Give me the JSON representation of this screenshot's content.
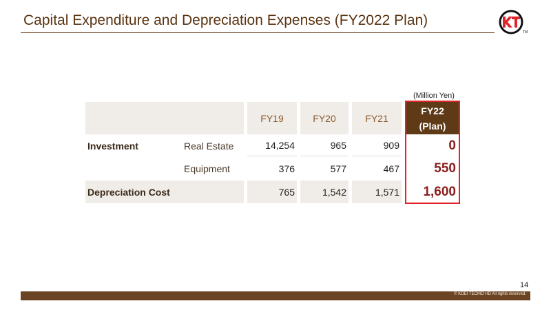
{
  "header": {
    "title": "Capital Expenditure and Depreciation Expenses (FY2022 Plan)",
    "logo_text": "KT",
    "logo_tm": "TM"
  },
  "table": {
    "unit": "(Million Yen)",
    "columns": [
      "FY19",
      "FY20",
      "FY21"
    ],
    "plan_column": {
      "line1": "FY22",
      "line2": "(Plan)"
    },
    "rows": [
      {
        "label": "Investment",
        "sublabel": "Real Estate",
        "values": [
          "14,254",
          "965",
          "909"
        ],
        "plan": "0"
      },
      {
        "label": "",
        "sublabel": "Equipment",
        "values": [
          "376",
          "577",
          "467"
        ],
        "plan": "550"
      },
      {
        "label": "Depreciation Cost",
        "sublabel": "",
        "values": [
          "765",
          "1,542",
          "1,571"
        ],
        "plan": "1,600"
      }
    ]
  },
  "footer": {
    "page_number": "14",
    "copyright": "© KOEI TECMO HD All rights reserved."
  },
  "colors": {
    "brand_brown": "#6b4423",
    "plan_header": "#5e3a17",
    "plan_value": "#8b1e1e",
    "highlight_border": "#e0242b",
    "header_shade": "#f0ece8"
  }
}
